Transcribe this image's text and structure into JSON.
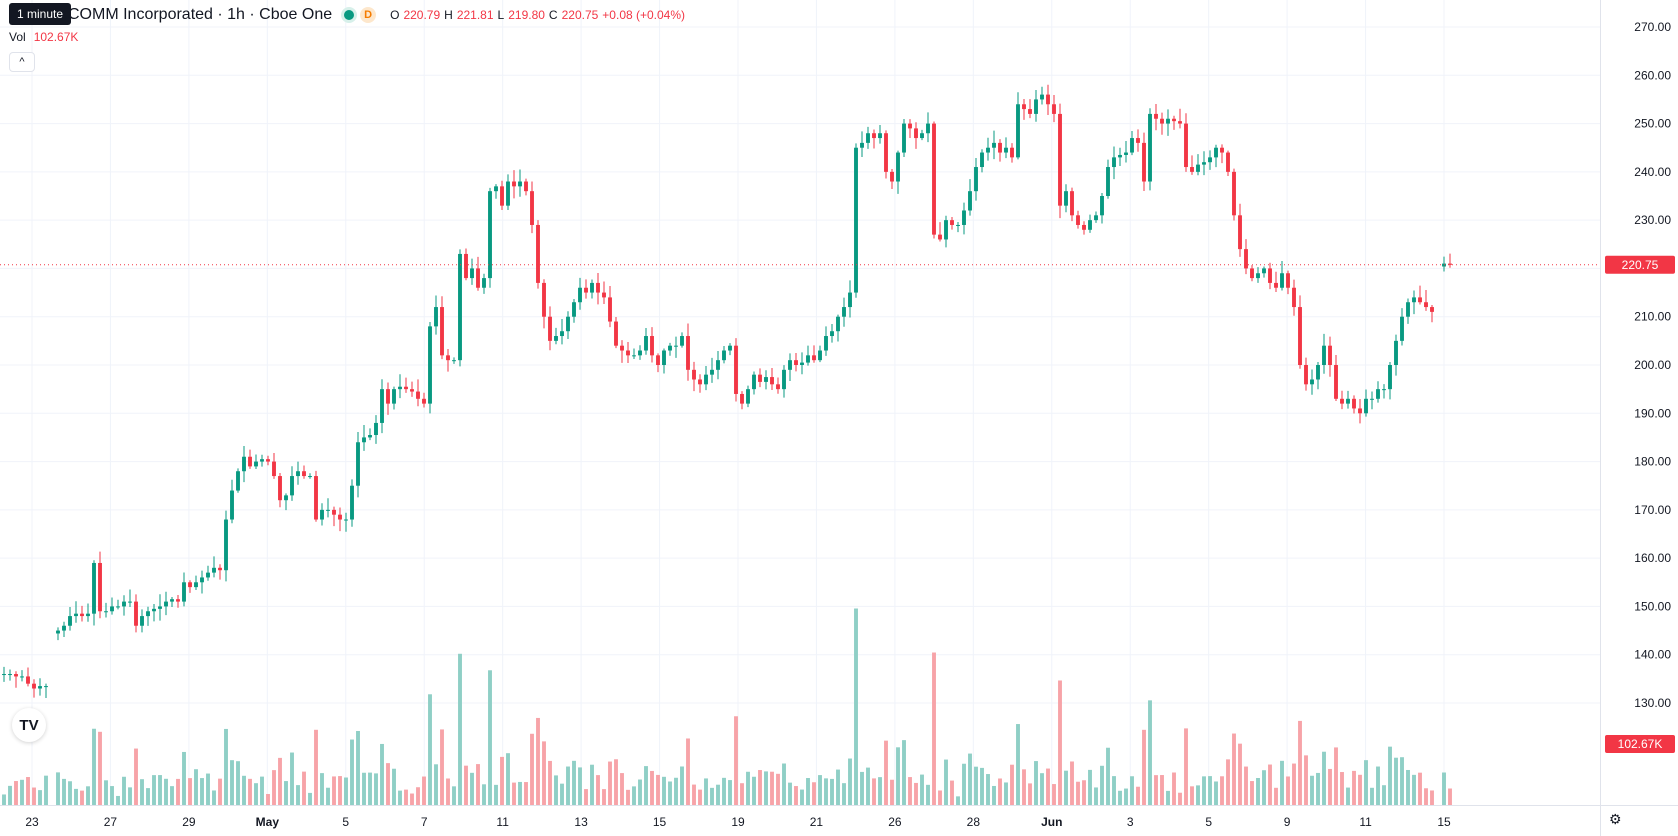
{
  "header": {
    "title": "COMM Incorporated · 1h · Cboe One",
    "tooltip": "1 minute",
    "badge_d": "D",
    "ohlc": {
      "o_key": "O",
      "o_val": "220.79",
      "h_key": "H",
      "h_val": "221.81",
      "l_key": "L",
      "l_val": "219.80",
      "c_key": "C",
      "c_val": "220.75",
      "change": "+0.08 (+0.04%)"
    },
    "vol_label": "Vol",
    "vol_value": "102.67K",
    "collapse_icon": "^"
  },
  "colors": {
    "up": "#089981",
    "down": "#f23645",
    "up_volume": "#8fcfc6",
    "down_volume": "#f7a3a8",
    "grid": "#f0f3fa"
  },
  "icons": {
    "logo": "tradingview-logo-icon",
    "settings": "gear-icon"
  },
  "logo_text": "TV",
  "chart_data": {
    "type": "candlestick",
    "price_axis": {
      "ticks": [
        "270.00",
        "260.00",
        "250.00",
        "240.00",
        "230.00",
        "220.00",
        "210.00",
        "200.00",
        "190.00",
        "180.00",
        "170.00",
        "160.00",
        "150.00",
        "140.00",
        "130.00"
      ],
      "range": [
        125,
        273
      ]
    },
    "current_price_label": "220.75",
    "current_price": 220.75,
    "current_volume_label": "102.67K",
    "time_axis": {
      "labels": [
        "23",
        "27",
        "29",
        "May",
        "5",
        "7",
        "11",
        "13",
        "15",
        "19",
        "21",
        "26",
        "28",
        "Jun",
        "3",
        "5",
        "9",
        "11",
        "15"
      ],
      "bold_labels": [
        "May",
        "Jun"
      ]
    },
    "closes": [
      136,
      136,
      135.5,
      135.5,
      134,
      133,
      133.5,
      133.5,
      null,
      145,
      146,
      148,
      148.5,
      148,
      148.5,
      159,
      149,
      149,
      150,
      150,
      151,
      151,
      146,
      148,
      149,
      149.5,
      150,
      151,
      151.5,
      151,
      155,
      154,
      155,
      156,
      157,
      158,
      157.5,
      168,
      174,
      178,
      181,
      179,
      180,
      180.5,
      180,
      177,
      172,
      173,
      177,
      178,
      177,
      177,
      168,
      170,
      170,
      169,
      168,
      168,
      175,
      184,
      185,
      185.5,
      188,
      195,
      192,
      195,
      195.5,
      195,
      194.5,
      193,
      192,
      208,
      212,
      202,
      201,
      201,
      223,
      218,
      220,
      216,
      218,
      236,
      237,
      233,
      238,
      237,
      238,
      236,
      229,
      217,
      210,
      205,
      206,
      207,
      210,
      213,
      216,
      215,
      217,
      215,
      214,
      209,
      204,
      203,
      202,
      202,
      203,
      206,
      202,
      200,
      203,
      204,
      204,
      206,
      199,
      197,
      196,
      198,
      199,
      201,
      203,
      204,
      194,
      192,
      195,
      198,
      196.5,
      197.5,
      196,
      195,
      199,
      201,
      200,
      200.5,
      202,
      201,
      203,
      206,
      207,
      210,
      212,
      215,
      245,
      246,
      248,
      247,
      248,
      240,
      238,
      244,
      250,
      249,
      247,
      248,
      250,
      227,
      226,
      230,
      229,
      229,
      232,
      236,
      241,
      244,
      245,
      246,
      244,
      245,
      243,
      254,
      253,
      252,
      255,
      256,
      254,
      252,
      233,
      236,
      231,
      229,
      228,
      230,
      231,
      235,
      241,
      243,
      243.5,
      244,
      247,
      246,
      238,
      252,
      251,
      250,
      251,
      250.5,
      250,
      241,
      240,
      241.5,
      242,
      243,
      245,
      244,
      240,
      231,
      224,
      220,
      218,
      219,
      220,
      217,
      216,
      219,
      216,
      212,
      200,
      196,
      197,
      200,
      204,
      200,
      193,
      192,
      193,
      191,
      190,
      193,
      193,
      195,
      195,
      200,
      205,
      210,
      213,
      214,
      213,
      212,
      211,
      null,
      221,
      220.75
    ],
    "series_note": ""
  }
}
